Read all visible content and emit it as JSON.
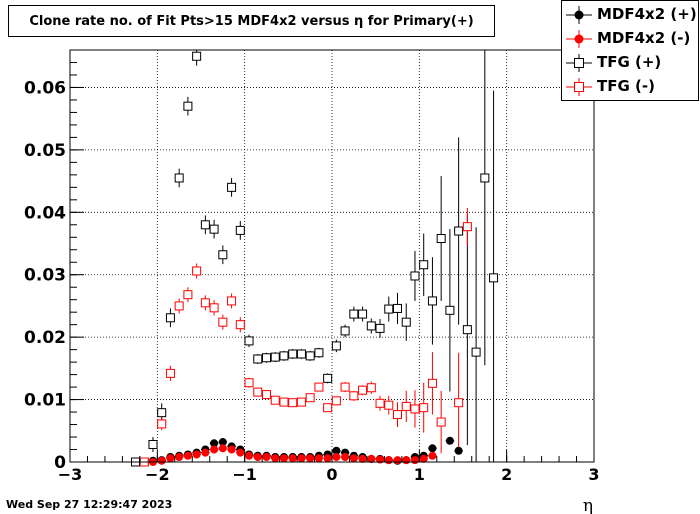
{
  "chart_data": {
    "type": "scatter",
    "title": "Clone rate no. of Fit Pts>15 MDF4x2 versus η for Primary(+)",
    "xlabel": "η",
    "ylabel": "",
    "xlim": [
      -3,
      3
    ],
    "ylim": [
      0,
      0.066
    ],
    "xticks": [
      -3,
      -2,
      -1,
      0,
      1,
      2,
      3
    ],
    "xtick_labels": [
      "−3",
      "−2",
      "−1",
      "0",
      "1",
      "2",
      "3"
    ],
    "yticks": [
      0,
      0.01,
      0.02,
      0.03,
      0.04,
      0.05,
      0.06
    ],
    "ytick_labels": [
      "0",
      "0.01",
      "0.02",
      "0.03",
      "0.04",
      "0.05",
      "0.06"
    ],
    "grid": true,
    "legend_position": "top-right",
    "series": [
      {
        "name": "MDF4x2 (+)",
        "marker": "filled-circle",
        "color": "#000000",
        "points": [
          {
            "x": -2.15,
            "y": 0.0
          },
          {
            "x": -2.05,
            "y": 0.0002
          },
          {
            "x": -1.95,
            "y": 0.0003
          },
          {
            "x": -1.85,
            "y": 0.0008
          },
          {
            "x": -1.75,
            "y": 0.001
          },
          {
            "x": -1.65,
            "y": 0.0012
          },
          {
            "x": -1.55,
            "y": 0.0015
          },
          {
            "x": -1.45,
            "y": 0.002
          },
          {
            "x": -1.35,
            "y": 0.003
          },
          {
            "x": -1.25,
            "y": 0.0032
          },
          {
            "x": -1.15,
            "y": 0.0025
          },
          {
            "x": -1.05,
            "y": 0.002
          },
          {
            "x": -0.95,
            "y": 0.0012
          },
          {
            "x": -0.85,
            "y": 0.001
          },
          {
            "x": -0.75,
            "y": 0.001
          },
          {
            "x": -0.65,
            "y": 0.0008
          },
          {
            "x": -0.55,
            "y": 0.0008
          },
          {
            "x": -0.45,
            "y": 0.0008
          },
          {
            "x": -0.35,
            "y": 0.0008
          },
          {
            "x": -0.25,
            "y": 0.0008
          },
          {
            "x": -0.15,
            "y": 0.001
          },
          {
            "x": -0.05,
            "y": 0.0012
          },
          {
            "x": 0.05,
            "y": 0.0018
          },
          {
            "x": 0.15,
            "y": 0.0015
          },
          {
            "x": 0.25,
            "y": 0.001
          },
          {
            "x": 0.35,
            "y": 0.0008
          },
          {
            "x": 0.45,
            "y": 0.0005
          },
          {
            "x": 0.55,
            "y": 0.0005
          },
          {
            "x": 0.65,
            "y": 0.0003
          },
          {
            "x": 0.75,
            "y": 0.0002
          },
          {
            "x": 0.85,
            "y": 0.0003
          },
          {
            "x": 0.95,
            "y": 0.0008
          },
          {
            "x": 1.05,
            "y": 0.001
          },
          {
            "x": 1.15,
            "y": 0.0022
          },
          {
            "x": 1.35,
            "y": 0.0034
          },
          {
            "x": 1.45,
            "y": 0.0018
          }
        ]
      },
      {
        "name": "MDF4x2 (-)",
        "marker": "filled-circle",
        "color": "#ff0000",
        "points": [
          {
            "x": -2.05,
            "y": 0.0
          },
          {
            "x": -1.95,
            "y": 0.0002
          },
          {
            "x": -1.85,
            "y": 0.0006
          },
          {
            "x": -1.75,
            "y": 0.0008
          },
          {
            "x": -1.65,
            "y": 0.001
          },
          {
            "x": -1.55,
            "y": 0.0012
          },
          {
            "x": -1.45,
            "y": 0.0015
          },
          {
            "x": -1.35,
            "y": 0.002
          },
          {
            "x": -1.25,
            "y": 0.0022
          },
          {
            "x": -1.15,
            "y": 0.002
          },
          {
            "x": -1.05,
            "y": 0.0015
          },
          {
            "x": -0.95,
            "y": 0.001
          },
          {
            "x": -0.85,
            "y": 0.0008
          },
          {
            "x": -0.75,
            "y": 0.0008
          },
          {
            "x": -0.65,
            "y": 0.0006
          },
          {
            "x": -0.55,
            "y": 0.0006
          },
          {
            "x": -0.45,
            "y": 0.0006
          },
          {
            "x": -0.35,
            "y": 0.0006
          },
          {
            "x": -0.25,
            "y": 0.0006
          },
          {
            "x": -0.15,
            "y": 0.0006
          },
          {
            "x": -0.05,
            "y": 0.0006
          },
          {
            "x": 0.05,
            "y": 0.0008
          },
          {
            "x": 0.15,
            "y": 0.0008
          },
          {
            "x": 0.25,
            "y": 0.0006
          },
          {
            "x": 0.35,
            "y": 0.0005
          },
          {
            "x": 0.45,
            "y": 0.0005
          },
          {
            "x": 0.55,
            "y": 0.0004
          },
          {
            "x": 0.65,
            "y": 0.0003
          },
          {
            "x": 0.75,
            "y": 0.0003
          },
          {
            "x": 0.85,
            "y": 0.0003
          },
          {
            "x": 0.95,
            "y": 0.0003
          },
          {
            "x": 1.05,
            "y": 0.0005
          },
          {
            "x": 1.15,
            "y": 0.001
          }
        ]
      },
      {
        "name": "TFG (+)",
        "marker": "open-square",
        "color": "#000000",
        "points": [
          {
            "x": -2.25,
            "y": 0.0,
            "err": 0
          },
          {
            "x": -2.15,
            "y": 0.0,
            "err": 0
          },
          {
            "x": -2.05,
            "y": 0.0028,
            "err": 0.0012
          },
          {
            "x": -1.95,
            "y": 0.0079,
            "err": 0.0015
          },
          {
            "x": -1.85,
            "y": 0.0231,
            "err": 0.0015
          },
          {
            "x": -1.75,
            "y": 0.0455,
            "err": 0.0015
          },
          {
            "x": -1.65,
            "y": 0.057,
            "err": 0.0015
          },
          {
            "x": -1.55,
            "y": 0.065,
            "err": 0.0015
          },
          {
            "x": -1.45,
            "y": 0.038,
            "err": 0.0015
          },
          {
            "x": -1.35,
            "y": 0.0373,
            "err": 0.0015
          },
          {
            "x": -1.25,
            "y": 0.0332,
            "err": 0.0015
          },
          {
            "x": -1.15,
            "y": 0.044,
            "err": 0.0015
          },
          {
            "x": -1.05,
            "y": 0.0371,
            "err": 0.0015
          },
          {
            "x": -0.95,
            "y": 0.0194,
            "err": 0.001
          },
          {
            "x": -0.85,
            "y": 0.0165,
            "err": 0.0008
          },
          {
            "x": -0.75,
            "y": 0.0167,
            "err": 0.0008
          },
          {
            "x": -0.65,
            "y": 0.0168,
            "err": 0.0008
          },
          {
            "x": -0.55,
            "y": 0.017,
            "err": 0.0008
          },
          {
            "x": -0.45,
            "y": 0.0173,
            "err": 0.0008
          },
          {
            "x": -0.35,
            "y": 0.0173,
            "err": 0.0008
          },
          {
            "x": -0.25,
            "y": 0.017,
            "err": 0.0008
          },
          {
            "x": -0.15,
            "y": 0.0175,
            "err": 0.0008
          },
          {
            "x": -0.05,
            "y": 0.0134,
            "err": 0.0008
          },
          {
            "x": 0.05,
            "y": 0.0186,
            "err": 0.001
          },
          {
            "x": 0.15,
            "y": 0.021,
            "err": 0.001
          },
          {
            "x": 0.25,
            "y": 0.0237,
            "err": 0.0012
          },
          {
            "x": 0.35,
            "y": 0.0237,
            "err": 0.0012
          },
          {
            "x": 0.45,
            "y": 0.0218,
            "err": 0.0012
          },
          {
            "x": 0.55,
            "y": 0.0214,
            "err": 0.0015
          },
          {
            "x": 0.65,
            "y": 0.0245,
            "err": 0.002
          },
          {
            "x": 0.75,
            "y": 0.0246,
            "err": 0.0025
          },
          {
            "x": 0.85,
            "y": 0.0224,
            "err": 0.003
          },
          {
            "x": 0.95,
            "y": 0.0298,
            "err": 0.004
          },
          {
            "x": 1.05,
            "y": 0.0316,
            "err": 0.005
          },
          {
            "x": 1.15,
            "y": 0.0258,
            "err": 0.007
          },
          {
            "x": 1.25,
            "y": 0.0358,
            "err": 0.01
          },
          {
            "x": 1.35,
            "y": 0.0243,
            "err": 0.013
          },
          {
            "x": 1.45,
            "y": 0.037,
            "err": 0.015
          },
          {
            "x": 1.55,
            "y": 0.0212,
            "err": 0.0185
          },
          {
            "x": 1.65,
            "y": 0.0176,
            "err": 0.02
          },
          {
            "x": 1.75,
            "y": 0.0455,
            "err": 0.03
          },
          {
            "x": 1.85,
            "y": 0.0295,
            "err": 0.03
          }
        ]
      },
      {
        "name": "TFG (-)",
        "marker": "open-square",
        "color": "#ff0000",
        "points": [
          {
            "x": -2.15,
            "y": 0.0,
            "err": 0
          },
          {
            "x": -1.95,
            "y": 0.0061,
            "err": 0.001
          },
          {
            "x": -1.85,
            "y": 0.0142,
            "err": 0.0012
          },
          {
            "x": -1.75,
            "y": 0.025,
            "err": 0.0012
          },
          {
            "x": -1.65,
            "y": 0.0268,
            "err": 0.0012
          },
          {
            "x": -1.55,
            "y": 0.0306,
            "err": 0.0012
          },
          {
            "x": -1.45,
            "y": 0.0255,
            "err": 0.0012
          },
          {
            "x": -1.35,
            "y": 0.0247,
            "err": 0.0012
          },
          {
            "x": -1.25,
            "y": 0.0224,
            "err": 0.0012
          },
          {
            "x": -1.15,
            "y": 0.0258,
            "err": 0.0012
          },
          {
            "x": -1.05,
            "y": 0.022,
            "err": 0.0012
          },
          {
            "x": -0.95,
            "y": 0.0127,
            "err": 0.0008
          },
          {
            "x": -0.85,
            "y": 0.0112,
            "err": 0.0006
          },
          {
            "x": -0.75,
            "y": 0.0108,
            "err": 0.0006
          },
          {
            "x": -0.65,
            "y": 0.0099,
            "err": 0.0006
          },
          {
            "x": -0.55,
            "y": 0.0096,
            "err": 0.0006
          },
          {
            "x": -0.45,
            "y": 0.0095,
            "err": 0.0006
          },
          {
            "x": -0.35,
            "y": 0.0096,
            "err": 0.0006
          },
          {
            "x": -0.25,
            "y": 0.0103,
            "err": 0.0006
          },
          {
            "x": -0.15,
            "y": 0.012,
            "err": 0.0006
          },
          {
            "x": -0.05,
            "y": 0.0087,
            "err": 0.0006
          },
          {
            "x": 0.05,
            "y": 0.0098,
            "err": 0.0006
          },
          {
            "x": 0.15,
            "y": 0.012,
            "err": 0.0008
          },
          {
            "x": 0.25,
            "y": 0.0106,
            "err": 0.0008
          },
          {
            "x": 0.35,
            "y": 0.0115,
            "err": 0.0008
          },
          {
            "x": 0.45,
            "y": 0.0119,
            "err": 0.001
          },
          {
            "x": 0.55,
            "y": 0.0094,
            "err": 0.0012
          },
          {
            "x": 0.65,
            "y": 0.0091,
            "err": 0.0015
          },
          {
            "x": 0.75,
            "y": 0.0076,
            "err": 0.002
          },
          {
            "x": 0.85,
            "y": 0.0089,
            "err": 0.0025
          },
          {
            "x": 0.95,
            "y": 0.0085,
            "err": 0.003
          },
          {
            "x": 1.05,
            "y": 0.0087,
            "err": 0.004
          },
          {
            "x": 1.15,
            "y": 0.0126,
            "err": 0.005
          },
          {
            "x": 1.25,
            "y": 0.0064,
            "err": 0.005
          },
          {
            "x": 1.45,
            "y": 0.0095,
            "err": 0.008
          },
          {
            "x": 1.55,
            "y": 0.0377,
            "err": 0.003
          }
        ]
      }
    ]
  },
  "legend": {
    "entries": [
      "MDF4x2 (+)",
      "MDF4x2 (-)",
      "TFG (+)",
      "TFG (-)"
    ]
  },
  "timestamp": "Wed Sep 27 12:29:47 2023"
}
